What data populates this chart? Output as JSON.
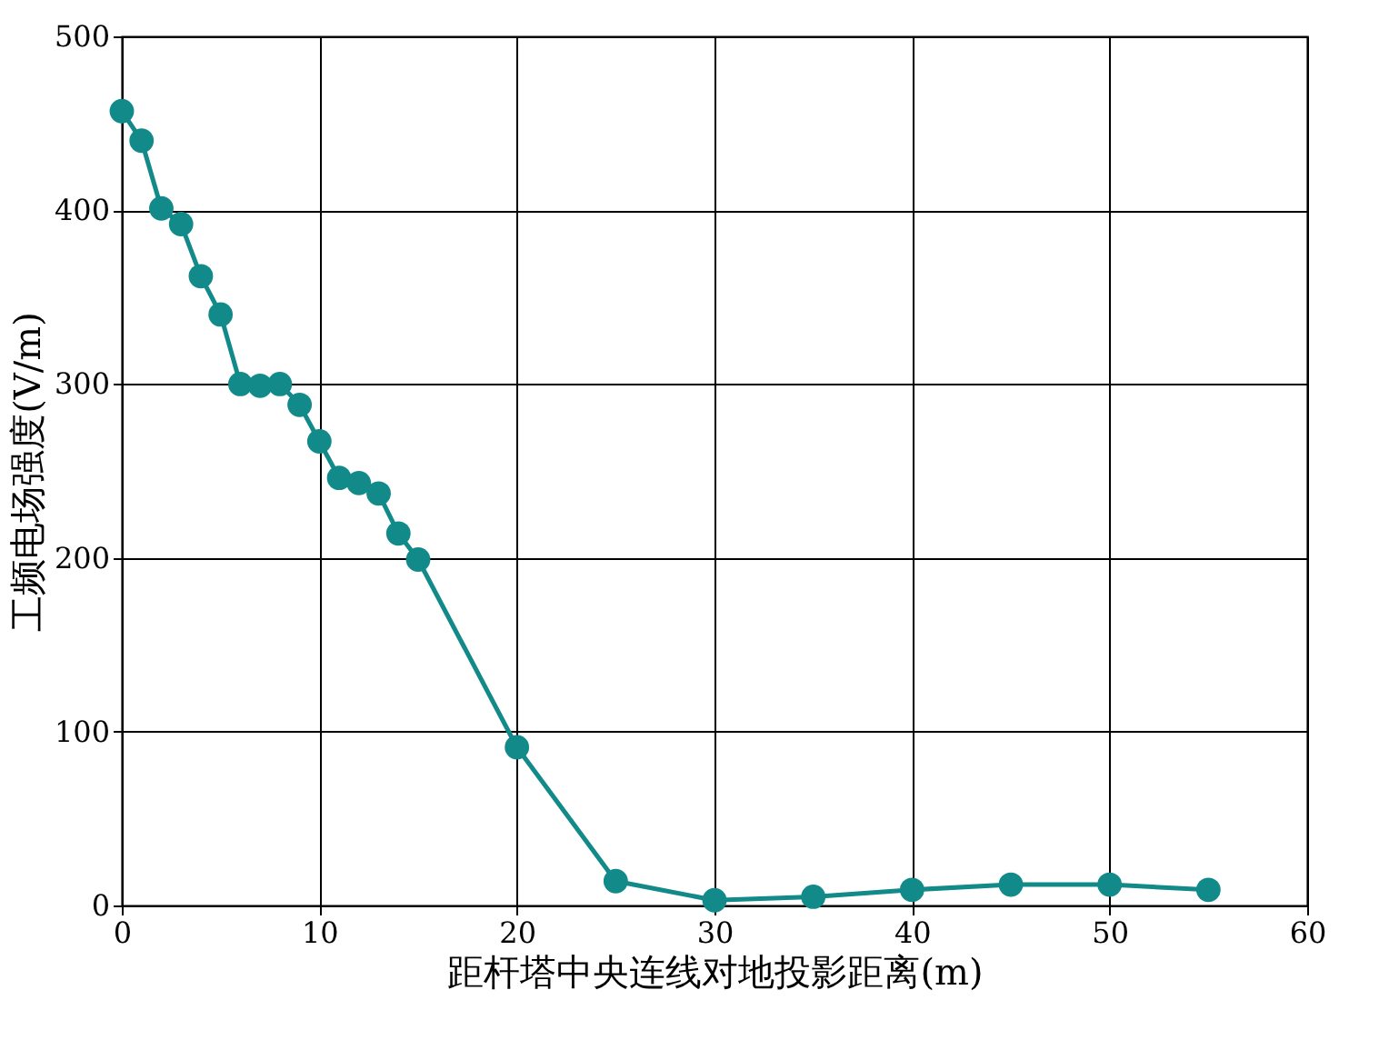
{
  "chart_data": {
    "type": "line",
    "xlabel": "距杆塔中央连线对地投影距离(m)",
    "ylabel": "工频电场强度(V/m)",
    "x": [
      0,
      1,
      2,
      3,
      4,
      5,
      6,
      7,
      8,
      9,
      10,
      11,
      12,
      13,
      14,
      15,
      20,
      25,
      30,
      35,
      40,
      45,
      50,
      55
    ],
    "series": [
      {
        "color": "#138a8a",
        "values": [
          457,
          440,
          401,
          392,
          362,
          340,
          300,
          299,
          300,
          288,
          267,
          246,
          243,
          237,
          214,
          199,
          91,
          14,
          3,
          5,
          9,
          12,
          12,
          9
        ]
      }
    ],
    "xlim": [
      0,
      60
    ],
    "xticks": [
      0,
      10,
      20,
      30,
      40,
      50,
      60
    ],
    "ylim": [
      0,
      500
    ],
    "yticks": [
      0,
      100,
      200,
      300,
      400,
      500
    ],
    "grid": true,
    "marker": "circle",
    "line_style": "solid"
  }
}
